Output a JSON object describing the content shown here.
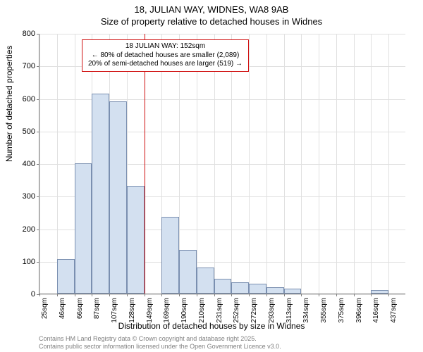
{
  "title_main": "18, JULIAN WAY, WIDNES, WA8 9AB",
  "title_sub": "Size of property relative to detached houses in Widnes",
  "ylabel": "Number of detached properties",
  "xlabel": "Distribution of detached houses by size in Widnes",
  "footer_l1": "Contains HM Land Registry data © Crown copyright and database right 2025.",
  "footer_l2": "Contains public sector information licensed under the Open Government Licence v3.0.",
  "chart": {
    "type": "histogram",
    "ylim": [
      0,
      800
    ],
    "yticks": [
      0,
      100,
      200,
      300,
      400,
      500,
      600,
      700,
      800
    ],
    "xticks": [
      "25sqm",
      "46sqm",
      "66sqm",
      "87sqm",
      "107sqm",
      "128sqm",
      "149sqm",
      "169sqm",
      "190sqm",
      "210sqm",
      "231sqm",
      "252sqm",
      "272sqm",
      "293sqm",
      "313sqm",
      "334sqm",
      "355sqm",
      "375sqm",
      "396sqm",
      "416sqm",
      "437sqm"
    ],
    "values": [
      0,
      105,
      400,
      615,
      590,
      330,
      0,
      235,
      135,
      80,
      45,
      35,
      30,
      20,
      15,
      0,
      0,
      0,
      0,
      10,
      0
    ],
    "bar_color": "#d3e0f0",
    "bar_border": "#7a8fb0",
    "grid_color": "#e0e0e0",
    "axis_color": "#808080",
    "reference_index": 6,
    "reference_color": "#d01010"
  },
  "annotation": {
    "l1": "18 JULIAN WAY: 152sqm",
    "l2": "← 80% of detached houses are smaller (2,089)",
    "l3": "20% of semi-detached houses are larger (519) →",
    "fontsize": 10
  }
}
